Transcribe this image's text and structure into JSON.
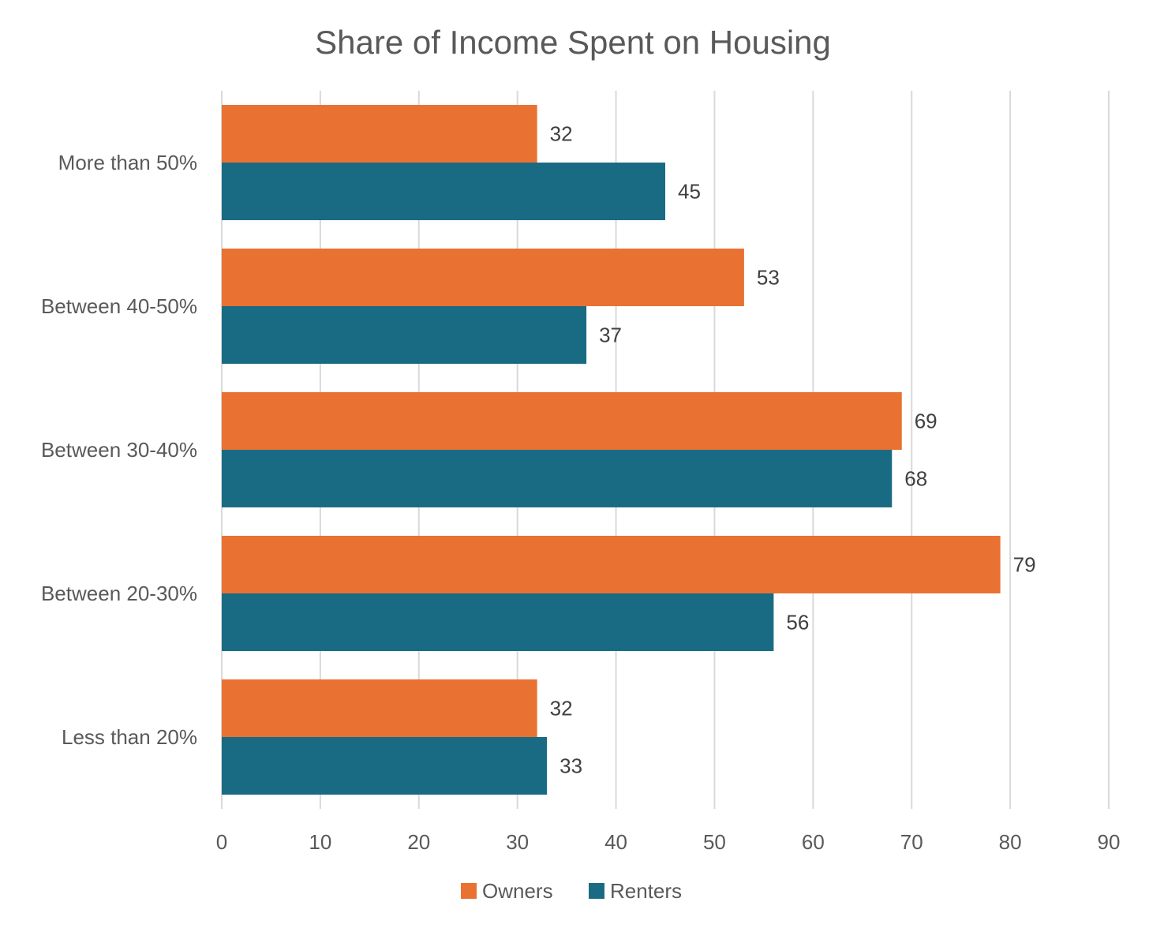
{
  "chart_data": {
    "type": "bar",
    "orientation": "horizontal",
    "title": "Share of Income Spent on Housing",
    "categories": [
      "More than 50%",
      "Between 40-50%",
      "Between 30-40%",
      "Between 20-30%",
      "Less than 20%"
    ],
    "series": [
      {
        "name": "Owners",
        "color": "#E97132",
        "values": [
          32,
          53,
          69,
          79,
          32
        ]
      },
      {
        "name": "Renters",
        "color": "#196B84",
        "values": [
          45,
          37,
          68,
          56,
          33
        ]
      }
    ],
    "xlim": [
      0,
      90
    ],
    "xticks": [
      0,
      10,
      20,
      30,
      40,
      50,
      60,
      70,
      80,
      90
    ],
    "xlabel": "",
    "ylabel": "",
    "grid": true,
    "legend": "bottom-center"
  }
}
